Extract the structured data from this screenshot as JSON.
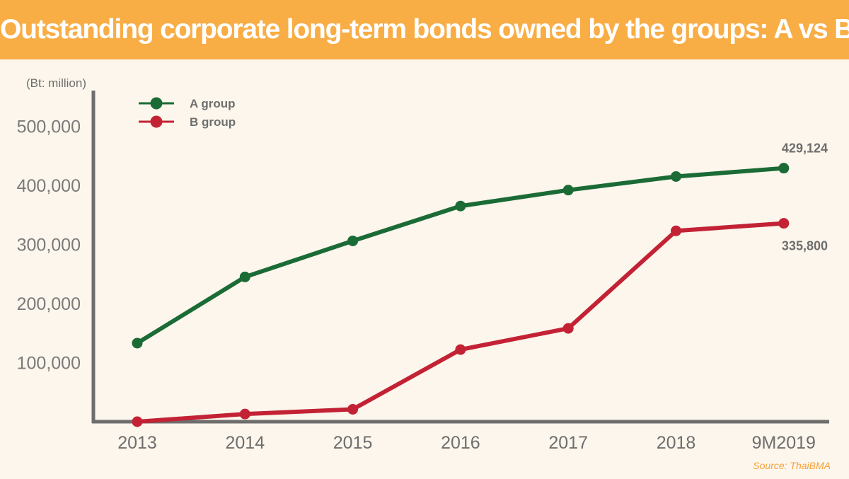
{
  "header": {
    "title": "Outstanding corporate long-term bonds owned by the groups: A vs B"
  },
  "footer": {
    "source": "Source: ThaiBMA"
  },
  "colors": {
    "header_bg": "#f9ad45",
    "background": "#fdf6ec",
    "a_group": "#1b6b36",
    "b_group": "#c32235",
    "axis": "#6e6e6e"
  },
  "chart_data": {
    "type": "line",
    "title": "Outstanding corporate long-term bonds owned by the groups: A vs B",
    "unit_label": "(Bt: million)",
    "categories": [
      "2013",
      "2014",
      "2015",
      "2016",
      "2017",
      "2018",
      "9M2019"
    ],
    "series": [
      {
        "name": "A group",
        "color": "#1b6b36",
        "values": [
          133000,
          245000,
          306000,
          365000,
          392000,
          415000,
          429124
        ]
      },
      {
        "name": "B group",
        "color": "#c32235",
        "values": [
          0,
          13000,
          21000,
          122000,
          158000,
          323000,
          335800
        ]
      }
    ],
    "data_labels": [
      {
        "series": "A group",
        "category": "9M2019",
        "text": "429,124"
      },
      {
        "series": "B group",
        "category": "9M2019",
        "text": "335,800"
      }
    ],
    "ylim": [
      0,
      550000
    ],
    "yticks": [
      {
        "value": 100000,
        "label": "100,000"
      },
      {
        "value": 200000,
        "label": "200,000"
      },
      {
        "value": 300000,
        "label": "300,000"
      },
      {
        "value": 400000,
        "label": "400,000"
      },
      {
        "value": 500000,
        "label": "500,000"
      }
    ],
    "grid": false,
    "legend": "top-left",
    "xlabel": "",
    "ylabel": ""
  }
}
